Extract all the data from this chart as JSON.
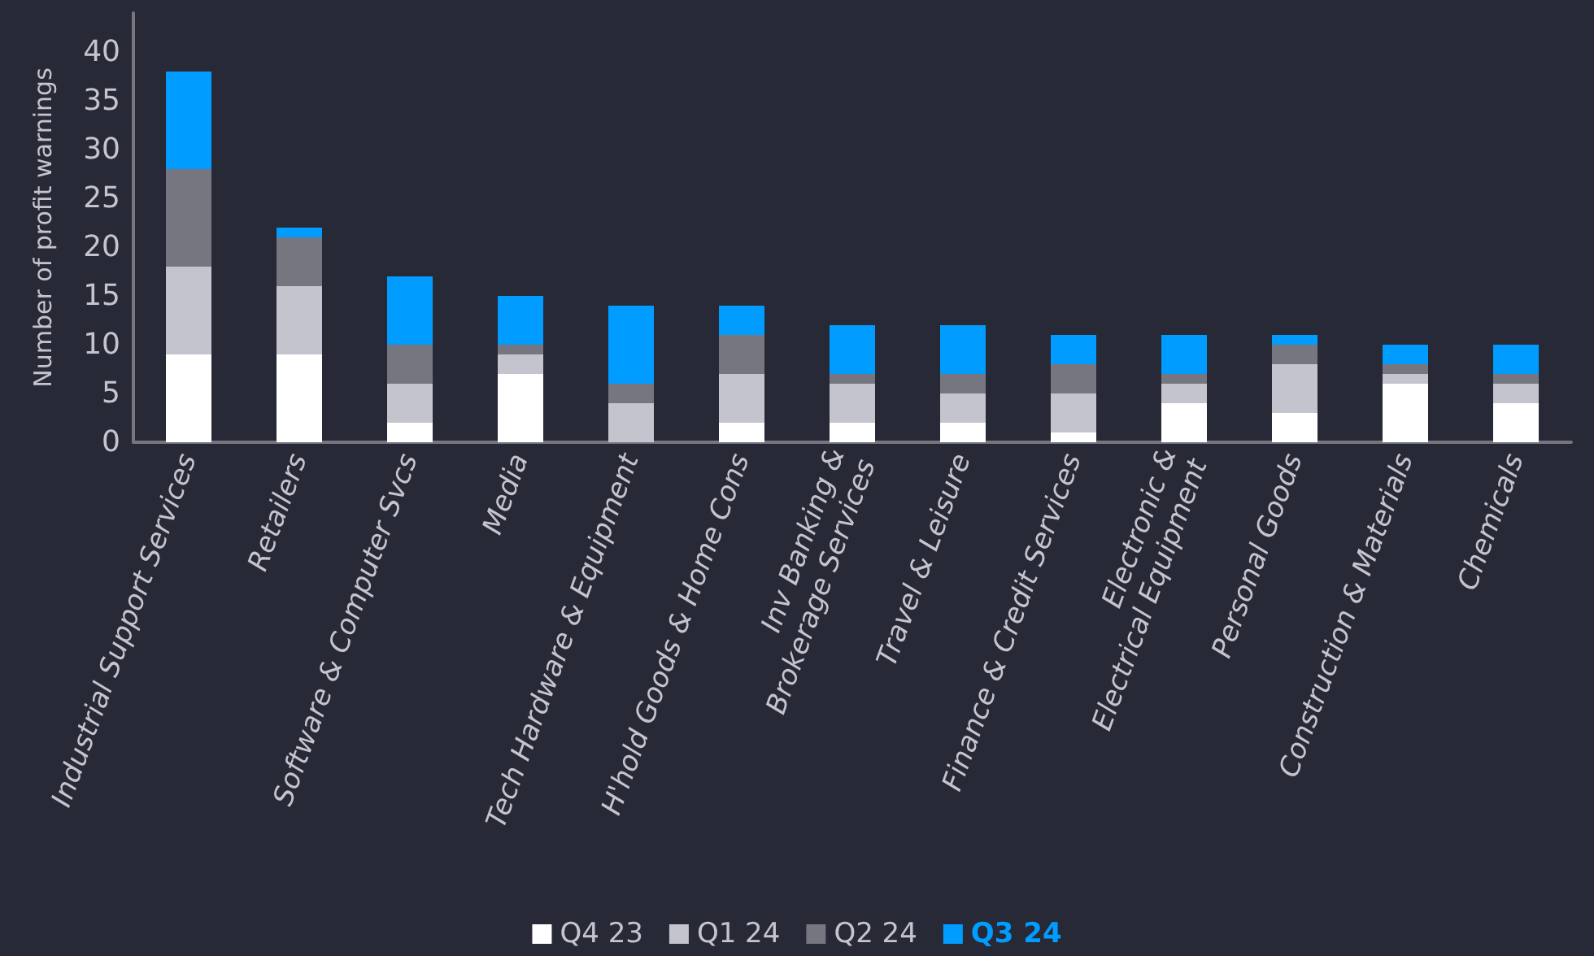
{
  "chart_data": {
    "type": "bar",
    "stacked": true,
    "ylabel": "Number of profit warnings",
    "categories": [
      "Industrial Support Services",
      "Retailers",
      "Software & Computer Svcs",
      "Media",
      "Tech Hardware & Equipment",
      "H'hold Goods & Home Cons",
      "Inv Banking &\nBrokerage Services",
      "Travel & Leisure",
      "Finance & Credit Services",
      "Electronic &\nElectrical Equipment",
      "Personal Goods",
      "Construction & Materials",
      "Chemicals"
    ],
    "series": [
      {
        "name": "Q4 23",
        "color": "#ffffff",
        "values": [
          9,
          9,
          2,
          7,
          0,
          2,
          2,
          2,
          1,
          4,
          3,
          6,
          4
        ]
      },
      {
        "name": "Q1 24",
        "color": "#c4c4cf",
        "values": [
          9,
          7,
          4,
          2,
          4,
          5,
          4,
          3,
          4,
          2,
          5,
          1,
          2
        ]
      },
      {
        "name": "Q2 24",
        "color": "#767681",
        "values": [
          10,
          5,
          4,
          1,
          2,
          4,
          1,
          2,
          3,
          1,
          2,
          1,
          1
        ]
      },
      {
        "name": "Q3 24",
        "color": "#009cff",
        "values": [
          10,
          1,
          7,
          5,
          8,
          3,
          5,
          5,
          3,
          4,
          1,
          2,
          3
        ]
      }
    ],
    "ylim": [
      0,
      44
    ],
    "yticks": [
      0,
      5,
      10,
      15,
      20,
      25,
      30,
      35,
      40
    ],
    "grid": false,
    "legend": "bottom"
  }
}
